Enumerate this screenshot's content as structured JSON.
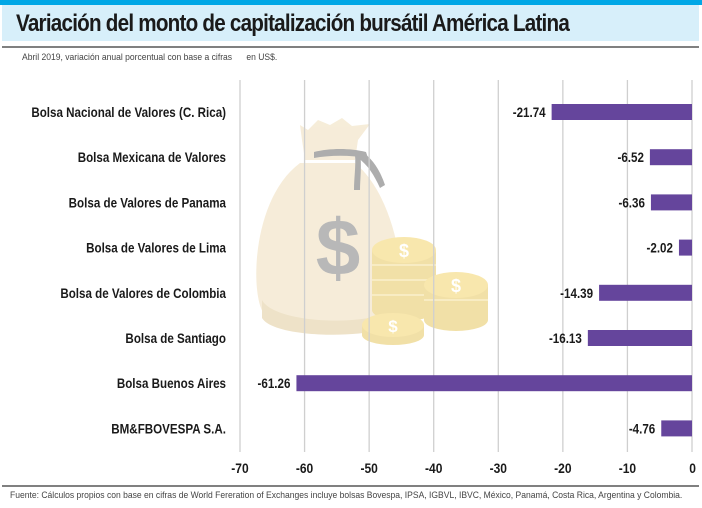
{
  "header": {
    "title": "Variación del monto de capitalización bursátil América Latina",
    "subtitle": "Abril 2019, variación anual porcentual con base a cifras      en US$.",
    "accent_color": "#00a7e6",
    "title_bg_color": "#d7effa"
  },
  "footer": {
    "source": "Fuente: Cálculos propios con base en cifras de World Fereration of Exchanges incluye bolsas Bovespa, IPSA, IGBVL, IBVC, México, Panamá, Costa Rica, Argentina y Colombia."
  },
  "illustration": {
    "icon": "money-bag-with-coins-icon"
  },
  "chart_data": {
    "type": "bar",
    "orientation": "horizontal",
    "title": "Variación del monto de capitalización bursátil América Latina",
    "subtitle": "Abril 2019, variación anual porcentual con base a cifras en US$.",
    "xlabel": "",
    "ylabel": "",
    "categories": [
      "Bolsa Nacional de Valores (C. Rica)",
      "Bolsa Mexicana de Valores",
      "Bolsa de Valores de Panama",
      "Bolsa de Valores de Lima",
      "Bolsa de Valores de Colombia",
      "Bolsa de Santiago",
      "Bolsa Buenos Aires",
      "BM&FBOVESPA S.A."
    ],
    "values": [
      -21.74,
      -6.52,
      -6.36,
      -2.02,
      -14.39,
      -16.13,
      -61.26,
      -4.76
    ],
    "value_labels": [
      "-21.74",
      "-6.52",
      "-6.36",
      "-2.02",
      "-14.39",
      "-16.13",
      "-61.26",
      "-4.76"
    ],
    "xlim": [
      -70,
      0
    ],
    "xticks": [
      -70,
      -60,
      -50,
      -40,
      -30,
      -20,
      -10,
      0
    ],
    "xtick_labels": [
      "-70",
      "-60",
      "-50",
      "-40",
      "-30",
      "-20",
      "-10",
      "0"
    ],
    "grid": true,
    "bar_color": "#65459c",
    "legend": "none"
  }
}
